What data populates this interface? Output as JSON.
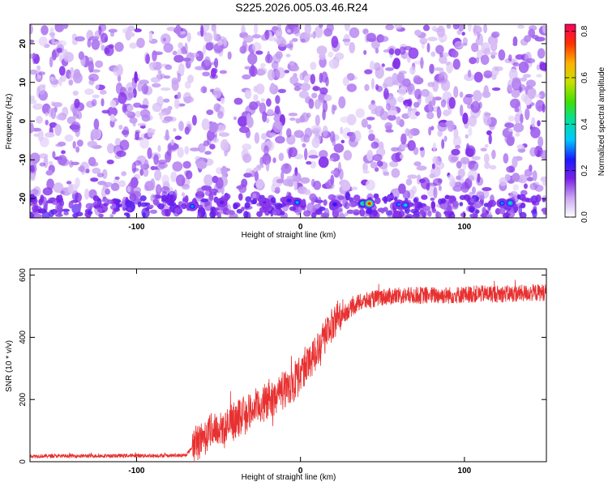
{
  "title": "S225.2026.005.03.46.R24",
  "chart_data": [
    {
      "type": "heatmap",
      "xlabel": "Height of straight line (km)",
      "ylabel": "Frequency (Hz)",
      "xlim": [
        -165,
        150
      ],
      "ylim": [
        -25,
        25
      ],
      "xticks": [
        -100,
        0,
        100
      ],
      "yticks": [
        -20,
        -10,
        0,
        10,
        20
      ],
      "colorbar": {
        "label": "Normalized spectral amplitude",
        "range": [
          0,
          0.83
        ],
        "ticks": [
          0.0,
          0.2,
          0.4,
          0.6,
          0.8
        ],
        "colormap": [
          "#ffffff",
          "#c9a6f2",
          "#7a1fe8",
          "#1a1aff",
          "#00c8ff",
          "#00e0a0",
          "#40e000",
          "#c8e000",
          "#ffb000",
          "#ff3000",
          "#ff0060"
        ]
      },
      "hot_spots": [
        {
          "x": -66,
          "y": -22,
          "amp": 0.3
        },
        {
          "x": -48,
          "y": -21,
          "amp": 0.2
        },
        {
          "x": -22,
          "y": -21,
          "amp": 0.18
        },
        {
          "x": -7,
          "y": -20.5,
          "amp": 0.22
        },
        {
          "x": -2,
          "y": -21,
          "amp": 0.32
        },
        {
          "x": 21,
          "y": -21.5,
          "amp": 0.24
        },
        {
          "x": 38,
          "y": -21.3,
          "amp": 0.45
        },
        {
          "x": 42,
          "y": -21.3,
          "amp": 0.75
        },
        {
          "x": 60,
          "y": -21.5,
          "amp": 0.3
        },
        {
          "x": 64,
          "y": -21.7,
          "amp": 0.35
        },
        {
          "x": 123,
          "y": -21.2,
          "amp": 0.3
        },
        {
          "x": 128,
          "y": -21.2,
          "amp": 0.38
        }
      ]
    },
    {
      "type": "line",
      "xlabel": "Height of straight line (km)",
      "ylabel": "SNR (10 * v/v)",
      "xlim": [
        -165,
        150
      ],
      "ylim": [
        0,
        620
      ],
      "xticks": [
        -100,
        0,
        100
      ],
      "yticks": [
        0,
        200,
        400,
        600
      ],
      "color": "#e83030",
      "profile": [
        {
          "x": -165,
          "snr": 18
        },
        {
          "x": -70,
          "snr": 20
        },
        {
          "x": -64,
          "snr": 60
        },
        {
          "x": -55,
          "snr": 100
        },
        {
          "x": -45,
          "snr": 110
        },
        {
          "x": -35,
          "snr": 150
        },
        {
          "x": -25,
          "snr": 180
        },
        {
          "x": -15,
          "snr": 215
        },
        {
          "x": -5,
          "snr": 250
        },
        {
          "x": 5,
          "snr": 320
        },
        {
          "x": 15,
          "snr": 410
        },
        {
          "x": 25,
          "snr": 470
        },
        {
          "x": 35,
          "snr": 510
        },
        {
          "x": 50,
          "snr": 530
        },
        {
          "x": 70,
          "snr": 535
        },
        {
          "x": 90,
          "snr": 535
        },
        {
          "x": 110,
          "snr": 540
        },
        {
          "x": 130,
          "snr": 540
        },
        {
          "x": 150,
          "snr": 545
        }
      ]
    }
  ]
}
